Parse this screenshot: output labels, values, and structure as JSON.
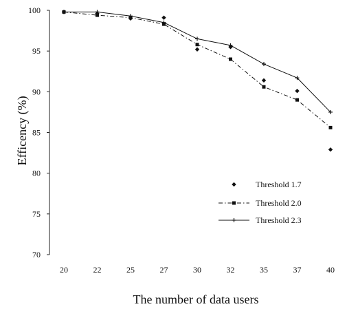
{
  "chart_data": {
    "type": "line",
    "title": "",
    "xlabel": "The number of data users",
    "ylabel": "Efficency (%)",
    "categories": [
      "20",
      "22",
      "25",
      "27",
      "30",
      "32",
      "35",
      "37",
      "40"
    ],
    "yticks": [
      "70",
      "75",
      "80",
      "85",
      "90",
      "95",
      "100"
    ],
    "ylim": [
      70,
      100
    ],
    "grid": false,
    "legend_position": "lower-right",
    "series": [
      {
        "name": "Threshold 1.7",
        "marker": "diamond",
        "line": "none",
        "color": "#111111",
        "values": [
          99.8,
          99.6,
          99.0,
          99.1,
          95.2,
          95.5,
          91.4,
          90.1,
          82.9
        ]
      },
      {
        "name": "Threshold 2.0",
        "marker": "square",
        "line": "dash-dot",
        "color": "#111111",
        "values": [
          99.8,
          99.4,
          99.1,
          98.3,
          95.8,
          94.0,
          90.6,
          89.0,
          85.6
        ]
      },
      {
        "name": "Threshold 2.3",
        "marker": "plus",
        "line": "solid",
        "color": "#111111",
        "values": [
          99.8,
          99.8,
          99.3,
          98.5,
          96.5,
          95.7,
          93.4,
          91.7,
          87.5
        ]
      }
    ]
  }
}
